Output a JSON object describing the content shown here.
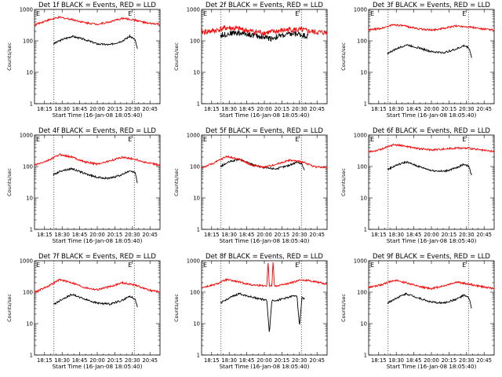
{
  "chart_data": [
    {
      "type": "line",
      "title": "Det 1f BLACK = Events, RED = LLD",
      "xlabel": "Start Time (16-Jan-08 18:05:40)",
      "ylabel": "Counts/sec",
      "xticks": [
        "18:15",
        "18:30",
        "18:45",
        "20:00",
        "20:15",
        "20:30",
        "20:45"
      ],
      "yticks": [
        "1",
        "10",
        "100",
        "1000"
      ],
      "ylim": [
        1,
        1000
      ],
      "yscale": "log",
      "markers": [
        "E",
        "E"
      ],
      "series": [
        {
          "name": "BLACK = Events",
          "color": "#000000",
          "x": [
            0.15,
            0.22,
            0.3,
            0.4,
            0.5,
            0.6,
            0.7,
            0.76,
            0.8,
            0.82
          ],
          "values": [
            80,
            110,
            140,
            110,
            80,
            75,
            100,
            140,
            110,
            55
          ]
        },
        {
          "name": "RED = LLD",
          "color": "#ff0000",
          "x": [
            0.0,
            0.1,
            0.2,
            0.3,
            0.4,
            0.5,
            0.6,
            0.7,
            0.8,
            0.9,
            1.0
          ],
          "values": [
            320,
            450,
            560,
            480,
            380,
            340,
            400,
            520,
            460,
            360,
            340
          ]
        }
      ]
    },
    {
      "type": "line",
      "title": "Det 2f BLACK = Events, RED = LLD",
      "xlabel": "Start Time (16-Jan-08 18:05:40)",
      "ylabel": "Counts/sec",
      "xticks": [
        "18:15",
        "18:30",
        "18:45",
        "20:00",
        "20:15",
        "20:30",
        "20:45"
      ],
      "yticks": [
        "1",
        "10",
        "100",
        "1000"
      ],
      "ylim": [
        1,
        1000
      ],
      "yscale": "log",
      "markers": [
        "E",
        "E"
      ],
      "series": [
        {
          "name": "BLACK = Events",
          "color": "#000000",
          "x": [
            0.15,
            0.25,
            0.35,
            0.45,
            0.55,
            0.65,
            0.75,
            0.85
          ],
          "values": [
            150,
            180,
            170,
            140,
            120,
            150,
            170,
            140
          ]
        },
        {
          "name": "RED = LLD",
          "color": "#ff0000",
          "x": [
            0.0,
            0.1,
            0.2,
            0.3,
            0.4,
            0.5,
            0.6,
            0.7,
            0.8,
            0.9,
            1.0
          ],
          "values": [
            190,
            210,
            260,
            240,
            200,
            180,
            200,
            230,
            220,
            190,
            180
          ]
        }
      ]
    },
    {
      "type": "line",
      "title": "Det 3f BLACK = Events, RED = LLD",
      "xlabel": "Start Time (16-Jan-08 18:05:40)",
      "ylabel": "Counts/sec",
      "xticks": [
        "18:15",
        "18:30",
        "18:45",
        "20:00",
        "20:15",
        "20:30",
        "20:45"
      ],
      "yticks": [
        "1",
        "10",
        "100",
        "1000"
      ],
      "ylim": [
        1,
        1000
      ],
      "yscale": "log",
      "markers": [
        "E",
        "E"
      ],
      "series": [
        {
          "name": "BLACK = Events",
          "color": "#000000",
          "x": [
            0.15,
            0.22,
            0.3,
            0.4,
            0.5,
            0.6,
            0.7,
            0.76,
            0.8,
            0.82
          ],
          "values": [
            40,
            55,
            75,
            60,
            45,
            42,
            55,
            70,
            60,
            30
          ]
        },
        {
          "name": "RED = LLD",
          "color": "#ff0000",
          "x": [
            0.0,
            0.1,
            0.2,
            0.3,
            0.4,
            0.5,
            0.6,
            0.7,
            0.8,
            0.9,
            1.0
          ],
          "values": [
            220,
            250,
            330,
            290,
            240,
            220,
            250,
            300,
            280,
            240,
            220
          ]
        }
      ]
    },
    {
      "type": "line",
      "title": "Det 4f BLACK = Events, RED = LLD",
      "xlabel": "Start Time (16-Jan-08 18:05:40)",
      "ylabel": "Counts/sec",
      "xticks": [
        "18:15",
        "18:30",
        "18:45",
        "20:00",
        "20:15",
        "20:30",
        "20:45"
      ],
      "yticks": [
        "1",
        "10",
        "100",
        "1000"
      ],
      "ylim": [
        1,
        1000
      ],
      "yscale": "log",
      "markers": [
        "E",
        "E"
      ],
      "series": [
        {
          "name": "BLACK = Events",
          "color": "#000000",
          "x": [
            0.15,
            0.22,
            0.3,
            0.4,
            0.5,
            0.6,
            0.7,
            0.76,
            0.8,
            0.82
          ],
          "values": [
            55,
            75,
            85,
            60,
            45,
            42,
            55,
            75,
            65,
            30
          ]
        },
        {
          "name": "RED = LLD",
          "color": "#ff0000",
          "x": [
            0.0,
            0.1,
            0.2,
            0.3,
            0.4,
            0.5,
            0.6,
            0.7,
            0.8,
            0.9,
            1.0
          ],
          "values": [
            110,
            150,
            240,
            200,
            140,
            120,
            150,
            200,
            170,
            130,
            110
          ]
        }
      ]
    },
    {
      "type": "line",
      "title": "Det 5f BLACK = Events, RED = LLD",
      "xlabel": "Start Time (16-Jan-08 18:05:40)",
      "ylabel": "Counts/sec",
      "xticks": [
        "18:15",
        "18:30",
        "18:45",
        "20:00",
        "20:15",
        "20:30",
        "20:45"
      ],
      "yticks": [
        "1",
        "10",
        "100",
        "1000"
      ],
      "ylim": [
        1,
        1000
      ],
      "yscale": "log",
      "markers": [
        "E",
        "E"
      ],
      "series": [
        {
          "name": "BLACK = Events",
          "color": "#000000",
          "x": [
            0.15,
            0.22,
            0.3,
            0.4,
            0.5,
            0.6,
            0.7,
            0.76,
            0.8,
            0.82
          ],
          "values": [
            100,
            140,
            170,
            120,
            90,
            85,
            110,
            140,
            120,
            75
          ]
        },
        {
          "name": "RED = LLD",
          "color": "#ff0000",
          "x": [
            0.0,
            0.1,
            0.2,
            0.3,
            0.4,
            0.5,
            0.6,
            0.7,
            0.8,
            0.9,
            1.0
          ],
          "values": [
            90,
            130,
            210,
            170,
            110,
            95,
            120,
            160,
            140,
            100,
            90
          ]
        }
      ]
    },
    {
      "type": "line",
      "title": "Det 6f BLACK = Events, RED = LLD",
      "xlabel": "Start Time (16-Jan-08 18:05:40)",
      "ylabel": "Counts/sec",
      "xticks": [
        "18:15",
        "18:30",
        "18:45",
        "20:00",
        "20:15",
        "20:30",
        "20:45"
      ],
      "yticks": [
        "1",
        "10",
        "100",
        "1000"
      ],
      "ylim": [
        1,
        1000
      ],
      "yscale": "log",
      "markers": [
        "E",
        "E"
      ],
      "series": [
        {
          "name": "BLACK = Events",
          "color": "#000000",
          "x": [
            0.15,
            0.22,
            0.3,
            0.4,
            0.5,
            0.6,
            0.7,
            0.76,
            0.8,
            0.82
          ],
          "values": [
            80,
            110,
            140,
            100,
            75,
            70,
            90,
            120,
            100,
            50
          ]
        },
        {
          "name": "RED = LLD",
          "color": "#ff0000",
          "x": [
            0.0,
            0.1,
            0.2,
            0.3,
            0.4,
            0.5,
            0.6,
            0.7,
            0.8,
            0.9,
            1.0
          ],
          "values": [
            290,
            350,
            500,
            440,
            370,
            340,
            360,
            390,
            380,
            330,
            300
          ]
        }
      ]
    },
    {
      "type": "line",
      "title": "Det 7f BLACK = Events, RED = LLD",
      "xlabel": "Start Time (16-Jan-08 18:05:40)",
      "ylabel": "Counts/sec",
      "xticks": [
        "18:15",
        "18:30",
        "18:45",
        "20:00",
        "20:15",
        "20:30",
        "20:45"
      ],
      "yticks": [
        "1",
        "10",
        "100",
        "1000"
      ],
      "ylim": [
        1,
        1000
      ],
      "yscale": "log",
      "markers": [
        "E",
        "E"
      ],
      "series": [
        {
          "name": "BLACK = Events",
          "color": "#000000",
          "x": [
            0.15,
            0.22,
            0.3,
            0.4,
            0.5,
            0.6,
            0.7,
            0.76,
            0.8,
            0.82
          ],
          "values": [
            40,
            60,
            85,
            60,
            45,
            42,
            55,
            75,
            60,
            35
          ]
        },
        {
          "name": "RED = LLD",
          "color": "#ff0000",
          "x": [
            0.0,
            0.1,
            0.2,
            0.3,
            0.4,
            0.5,
            0.6,
            0.7,
            0.8,
            0.9,
            1.0
          ],
          "values": [
            100,
            150,
            250,
            200,
            140,
            120,
            150,
            200,
            170,
            120,
            100
          ]
        }
      ]
    },
    {
      "type": "line",
      "title": "Det 8f BLACK = Events, RED = LLD",
      "xlabel": "Start Time (16-Jan-08 18:05:40)",
      "ylabel": "Counts/sec",
      "xticks": [
        "18:15",
        "18:30",
        "18:45",
        "20:00",
        "20:15",
        "20:30",
        "20:45"
      ],
      "yticks": [
        "1",
        "10",
        "100",
        "1000"
      ],
      "ylim": [
        1,
        1000
      ],
      "yscale": "log",
      "markers": [
        "E",
        "E"
      ],
      "series": [
        {
          "name": "BLACK = Events",
          "color": "#000000",
          "x": [
            0.15,
            0.22,
            0.3,
            0.4,
            0.52,
            0.54,
            0.56,
            0.6,
            0.7,
            0.76,
            0.78,
            0.8,
            0.82
          ],
          "values": [
            45,
            65,
            90,
            70,
            55,
            5,
            55,
            55,
            70,
            80,
            8,
            70,
            60
          ]
        },
        {
          "name": "RED = LLD",
          "color": "#ff0000",
          "x": [
            0.0,
            0.1,
            0.2,
            0.3,
            0.4,
            0.52,
            0.53,
            0.54,
            0.56,
            0.57,
            0.58,
            0.6,
            0.7,
            0.8,
            0.9,
            1.0
          ],
          "values": [
            140,
            170,
            250,
            210,
            170,
            160,
            1000,
            160,
            160,
            1000,
            160,
            160,
            190,
            250,
            220,
            180
          ]
        }
      ]
    },
    {
      "type": "line",
      "title": "Det 9f BLACK = Events, RED = LLD",
      "xlabel": "Start Time (16-Jan-08 18:05:40)",
      "ylabel": "Counts/sec",
      "xticks": [
        "18:15",
        "18:30",
        "18:45",
        "20:00",
        "20:15",
        "20:30",
        "20:45"
      ],
      "yticks": [
        "1",
        "10",
        "100",
        "1000"
      ],
      "ylim": [
        1,
        1000
      ],
      "yscale": "log",
      "markers": [
        "E",
        "E"
      ],
      "series": [
        {
          "name": "BLACK = Events",
          "color": "#000000",
          "x": [
            0.15,
            0.22,
            0.3,
            0.4,
            0.5,
            0.6,
            0.7,
            0.76,
            0.8,
            0.82
          ],
          "values": [
            45,
            65,
            90,
            65,
            48,
            45,
            60,
            80,
            65,
            30
          ]
        },
        {
          "name": "RED = LLD",
          "color": "#ff0000",
          "x": [
            0.0,
            0.1,
            0.2,
            0.3,
            0.4,
            0.5,
            0.6,
            0.7,
            0.8,
            0.9,
            1.0
          ],
          "values": [
            140,
            170,
            240,
            200,
            150,
            130,
            160,
            210,
            180,
            150,
            130
          ]
        }
      ]
    }
  ]
}
